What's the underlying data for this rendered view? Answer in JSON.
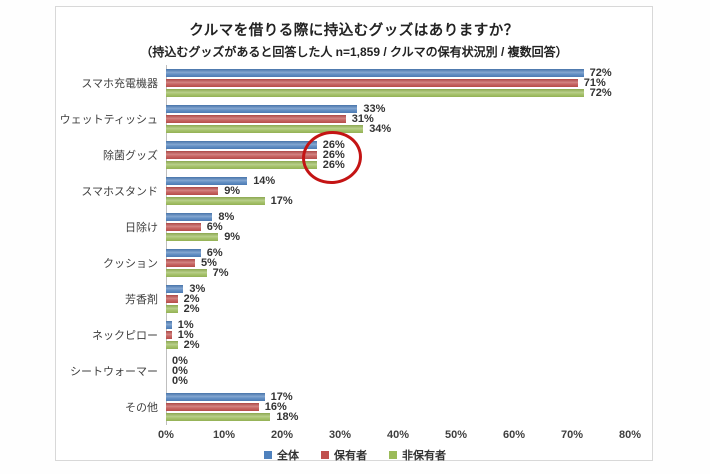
{
  "title": "クルマを借りる際に持込むグッズはありますか？",
  "subtitle": "（持込むグッズがあると回答した人 n=1,859 / クルマの保有状況別 / 複数回答）",
  "colors": {
    "series_zentai": "#4F81BD",
    "series_hoyusha": "#C0504D",
    "series_hihoyusha": "#9BBB59",
    "highlight_circle": "#C41414",
    "axis_line": "#BFBFBF"
  },
  "chart_data": {
    "type": "bar",
    "orientation": "horizontal",
    "title": "クルマを借りる際に持込むグッズはありますか？",
    "subtitle": "（持込むグッズがあると回答した人 n=1,859 / クルマの保有状況別 / 複数回答）",
    "categories": [
      "スマホ充電機器",
      "ウェットティッシュ",
      "除菌グッズ",
      "スマホスタンド",
      "日除け",
      "クッション",
      "芳香剤",
      "ネックピロー",
      "シートウォーマー",
      "その他"
    ],
    "series": [
      {
        "name": "全体",
        "color": "#4F81BD",
        "values": [
          72,
          33,
          26,
          14,
          8,
          6,
          3,
          1,
          0,
          17
        ]
      },
      {
        "name": "保有者",
        "color": "#C0504D",
        "values": [
          71,
          31,
          26,
          9,
          6,
          5,
          2,
          1,
          0,
          16
        ]
      },
      {
        "name": "非保有者",
        "color": "#9BBB59",
        "values": [
          72,
          34,
          26,
          17,
          9,
          7,
          2,
          2,
          0,
          18
        ]
      }
    ],
    "value_suffix": "%",
    "xlim": [
      0,
      80
    ],
    "x_ticks": [
      "0%",
      "10%",
      "20%",
      "30%",
      "40%",
      "50%",
      "60%",
      "70%",
      "80%"
    ],
    "grid": false,
    "legend_position": "bottom",
    "annotation": {
      "shape": "red-circle",
      "target_category": "除菌グッズ",
      "highlighted_values": [
        "26%",
        "26%",
        "26%"
      ]
    }
  }
}
